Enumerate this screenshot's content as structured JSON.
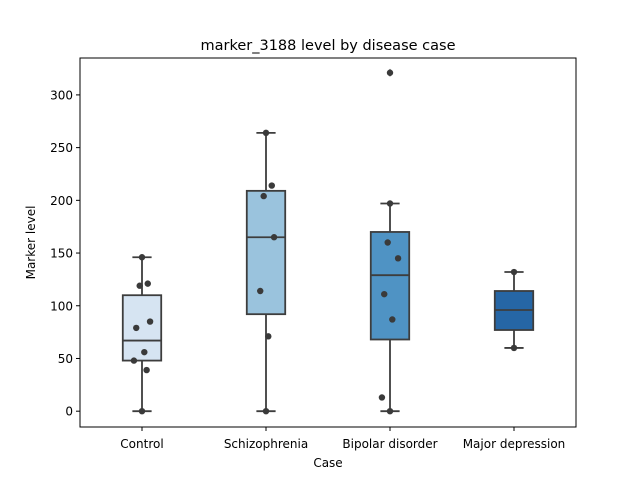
{
  "chart_data": {
    "type": "boxplot",
    "title": "marker_3188 level by disease case",
    "xlabel": "Case",
    "ylabel": "Marker level",
    "ylim": [
      -15,
      335
    ],
    "yticks": [
      0,
      50,
      100,
      150,
      200,
      250,
      300
    ],
    "grid": false,
    "categories": [
      "Control",
      "Schizophrenia",
      "Bipolar disorder",
      "Major depression"
    ],
    "boxes": [
      {
        "category": "Control",
        "color": "#d6e4f2",
        "whisker_low": 0,
        "q1": 48,
        "median": 67,
        "q3": 110,
        "whisker_high": 146,
        "outliers": []
      },
      {
        "category": "Schizophrenia",
        "color": "#9ac3dd",
        "whisker_low": 0,
        "q1": 92,
        "median": 165,
        "q3": 209,
        "whisker_high": 264,
        "outliers": []
      },
      {
        "category": "Bipolar disorder",
        "color": "#4f93c4",
        "whisker_low": 0,
        "q1": 68,
        "median": 129,
        "q3": 170,
        "whisker_high": 197,
        "outliers": [
          321
        ]
      },
      {
        "category": "Major depression",
        "color": "#2666a5",
        "whisker_low": 60,
        "q1": 77,
        "median": 96,
        "q3": 114,
        "whisker_high": 132,
        "outliers": []
      }
    ],
    "points": [
      {
        "category": "Control",
        "values": [
          146,
          121,
          119,
          85,
          79,
          56,
          48,
          39,
          0
        ]
      },
      {
        "category": "Schizophrenia",
        "values": [
          264,
          214,
          204,
          165,
          114,
          71,
          0
        ]
      },
      {
        "category": "Bipolar disorder",
        "values": [
          321,
          197,
          160,
          145,
          111,
          87,
          13,
          0
        ]
      },
      {
        "category": "Major depression",
        "values": [
          132,
          60
        ]
      }
    ]
  }
}
